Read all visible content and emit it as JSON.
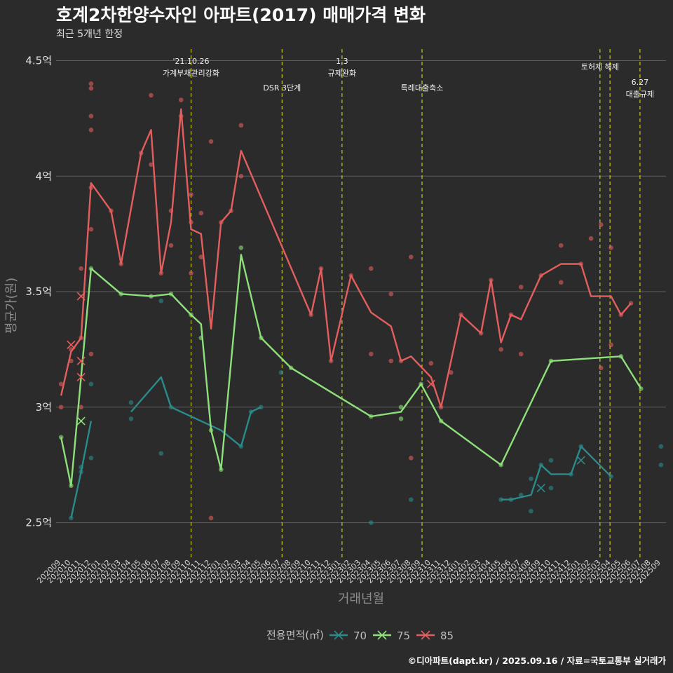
{
  "chart_data": {
    "type": "line",
    "title": "호계2차한양수자인 아파트(2017) 매매가격 변화",
    "subtitle": "최근 5개년 한정",
    "xlabel": "거래년월",
    "ylabel": "평균가(원)",
    "caption": "©디아파트(dapt.kr) / 2025.09.16 / 자료=국토교통부 실거래가",
    "legend_title": "전용면적(㎡)",
    "legend_position": "bottom",
    "grid": true,
    "y_unit": "억",
    "ylim": [
      2.35,
      4.55
    ],
    "y_ticks": [
      2.5,
      3,
      3.5,
      4,
      4.5
    ],
    "y_tick_labels": [
      "2.5억",
      "3억",
      "3.5억",
      "4억",
      "4.5억"
    ],
    "x_categories": [
      "202009",
      "202010",
      "202011",
      "202012",
      "202101",
      "202102",
      "202103",
      "202104",
      "202105",
      "202106",
      "202107",
      "202108",
      "202109",
      "202110",
      "202111",
      "202112",
      "202201",
      "202202",
      "202203",
      "202204",
      "202205",
      "202206",
      "202207",
      "202208",
      "202209",
      "202210",
      "202211",
      "202212",
      "202301",
      "202302",
      "202303",
      "202304",
      "202305",
      "202306",
      "202307",
      "202308",
      "202309",
      "202310",
      "202311",
      "202312",
      "202401",
      "202402",
      "202403",
      "202404",
      "202405",
      "202406",
      "202407",
      "202408",
      "202409",
      "202410",
      "202411",
      "202412",
      "202501",
      "202502",
      "202503",
      "202504",
      "202505",
      "202506",
      "202507",
      "202508",
      "202509"
    ],
    "events": [
      {
        "x": 13.0,
        "label": "'21.10.26\n가계부채관리강화",
        "row": 0
      },
      {
        "x": 22.1,
        "label": "DSR 3단계",
        "row": 2
      },
      {
        "x": 28.1,
        "label": "1.3\n규제완화",
        "row": 0
      },
      {
        "x": 36.1,
        "label": "특례대출축소",
        "row": 2
      },
      {
        "x": 53.9,
        "label": "토허제 해제",
        "row": 1
      },
      {
        "x": 54.9,
        "label": "",
        "row": 1
      },
      {
        "x": 57.9,
        "label": "6.27\n대출규제",
        "row": 3
      }
    ],
    "series": [
      {
        "name": "70",
        "color": "#2a8b8b",
        "line": [
          [
            [
              1,
              2.52
            ],
            [
              2,
              2.72
            ],
            [
              3,
              2.94
            ]
          ],
          [
            [
              7,
              2.98
            ],
            [
              10,
              3.13
            ],
            [
              11,
              3.0
            ],
            [
              16,
              2.9
            ],
            [
              18,
              2.83
            ],
            [
              19,
              2.98
            ],
            [
              20,
              3.0
            ]
          ],
          [
            [
              44,
              2.6
            ],
            [
              45,
              2.6
            ],
            [
              47,
              2.62
            ],
            [
              48,
              2.75
            ],
            [
              49,
              2.71
            ],
            [
              51,
              2.71
            ],
            [
              52,
              2.83
            ],
            [
              55,
              2.7
            ]
          ]
        ],
        "points": [
          [
            1,
            2.52
          ],
          [
            2,
            2.72
          ],
          [
            2,
            2.74
          ],
          [
            3,
            2.78
          ],
          [
            3,
            3.1
          ],
          [
            7,
            2.95
          ],
          [
            7,
            3.02
          ],
          [
            10,
            2.8
          ],
          [
            10,
            3.46
          ],
          [
            11,
            3.0
          ],
          [
            15,
            3.41
          ],
          [
            18,
            2.83
          ],
          [
            19,
            2.98
          ],
          [
            20,
            3.0
          ],
          [
            22,
            3.15
          ],
          [
            31,
            2.5
          ],
          [
            35,
            2.6
          ],
          [
            44,
            2.6
          ],
          [
            45,
            2.6
          ],
          [
            46,
            2.62
          ],
          [
            47,
            2.55
          ],
          [
            47,
            2.69
          ],
          [
            48,
            2.75
          ],
          [
            49,
            2.65
          ],
          [
            49,
            2.77
          ],
          [
            51,
            2.71
          ],
          [
            52,
            2.83
          ],
          [
            55,
            2.7
          ],
          [
            60,
            2.75
          ],
          [
            60,
            2.83
          ]
        ],
        "x_marks": [
          [
            48,
            2.65
          ],
          [
            52,
            2.77
          ]
        ]
      },
      {
        "name": "75",
        "color": "#8ee07a",
        "line": [
          [
            [
              0,
              2.87
            ],
            [
              1,
              2.66
            ],
            [
              3,
              3.6
            ],
            [
              6,
              3.49
            ],
            [
              9,
              3.48
            ],
            [
              11,
              3.49
            ],
            [
              13,
              3.4
            ],
            [
              14,
              3.36
            ],
            [
              15,
              2.9
            ],
            [
              16,
              2.73
            ],
            [
              18,
              3.66
            ],
            [
              20,
              3.3
            ],
            [
              23,
              3.17
            ],
            [
              31,
              2.96
            ],
            [
              34,
              2.98
            ],
            [
              36,
              3.1
            ],
            [
              38,
              2.94
            ],
            [
              44,
              2.75
            ],
            [
              49,
              3.2
            ],
            [
              56,
              3.22
            ],
            [
              58,
              3.08
            ]
          ]
        ],
        "points": [
          [
            0,
            2.87
          ],
          [
            1,
            2.66
          ],
          [
            3,
            3.6
          ],
          [
            6,
            3.49
          ],
          [
            9,
            3.48
          ],
          [
            11,
            3.49
          ],
          [
            13,
            3.4
          ],
          [
            14,
            3.3
          ],
          [
            15,
            2.9
          ],
          [
            16,
            2.73
          ],
          [
            18,
            3.69
          ],
          [
            20,
            3.3
          ],
          [
            23,
            3.17
          ],
          [
            31,
            2.96
          ],
          [
            34,
            3.0
          ],
          [
            34,
            2.95
          ],
          [
            36,
            3.1
          ],
          [
            38,
            2.94
          ],
          [
            44,
            2.75
          ],
          [
            49,
            3.2
          ],
          [
            56,
            3.22
          ],
          [
            58,
            3.08
          ]
        ],
        "x_marks": [
          [
            2,
            2.94
          ]
        ]
      },
      {
        "name": "85",
        "color": "#e45e5e",
        "line": [
          [
            [
              0,
              3.05
            ],
            [
              1,
              3.24
            ],
            [
              2,
              3.3
            ],
            [
              3,
              3.97
            ],
            [
              5,
              3.85
            ],
            [
              6,
              3.62
            ],
            [
              8,
              4.1
            ],
            [
              9,
              4.2
            ],
            [
              10,
              3.58
            ],
            [
              11,
              3.8
            ],
            [
              12,
              4.29
            ],
            [
              13,
              3.77
            ],
            [
              14,
              3.75
            ],
            [
              15,
              3.34
            ],
            [
              16,
              3.8
            ],
            [
              17,
              3.85
            ],
            [
              18,
              4.11
            ],
            [
              25,
              3.4
            ],
            [
              26,
              3.6
            ],
            [
              27,
              3.2
            ],
            [
              29,
              3.57
            ],
            [
              31,
              3.41
            ],
            [
              33,
              3.35
            ],
            [
              34,
              3.2
            ],
            [
              35,
              3.22
            ],
            [
              37,
              3.13
            ],
            [
              38,
              3.0
            ],
            [
              40,
              3.4
            ],
            [
              42,
              3.32
            ],
            [
              43,
              3.55
            ],
            [
              44,
              3.28
            ],
            [
              45,
              3.4
            ],
            [
              46,
              3.38
            ],
            [
              48,
              3.57
            ],
            [
              50,
              3.62
            ],
            [
              52,
              3.62
            ],
            [
              53,
              3.48
            ],
            [
              54,
              3.48
            ],
            [
              55,
              3.48
            ],
            [
              56,
              3.4
            ],
            [
              57,
              3.45
            ]
          ]
        ],
        "points": [
          [
            0,
            3.0
          ],
          [
            0,
            3.1
          ],
          [
            1,
            3.2
          ],
          [
            1,
            3.25
          ],
          [
            2,
            3.3
          ],
          [
            2,
            3.6
          ],
          [
            2,
            3.0
          ],
          [
            3,
            3.23
          ],
          [
            3,
            3.77
          ],
          [
            3,
            3.95
          ],
          [
            3,
            4.2
          ],
          [
            3,
            4.26
          ],
          [
            3,
            4.38
          ],
          [
            3,
            4.4
          ],
          [
            5,
            3.85
          ],
          [
            6,
            3.62
          ],
          [
            8,
            4.1
          ],
          [
            9,
            4.05
          ],
          [
            9,
            4.35
          ],
          [
            10,
            3.58
          ],
          [
            11,
            3.7
          ],
          [
            11,
            3.85
          ],
          [
            12,
            4.26
          ],
          [
            12,
            4.33
          ],
          [
            13,
            3.58
          ],
          [
            13,
            3.8
          ],
          [
            13,
            3.92
          ],
          [
            14,
            3.65
          ],
          [
            14,
            3.84
          ],
          [
            15,
            4.15
          ],
          [
            15,
            2.52
          ],
          [
            16,
            3.8
          ],
          [
            17,
            3.85
          ],
          [
            18,
            4.0
          ],
          [
            18,
            4.22
          ],
          [
            25,
            3.4
          ],
          [
            26,
            3.6
          ],
          [
            27,
            3.2
          ],
          [
            29,
            3.57
          ],
          [
            31,
            3.6
          ],
          [
            31,
            3.23
          ],
          [
            33,
            3.49
          ],
          [
            33,
            3.2
          ],
          [
            34,
            3.2
          ],
          [
            35,
            3.65
          ],
          [
            35,
            2.78
          ],
          [
            37,
            3.19
          ],
          [
            38,
            3.0
          ],
          [
            39,
            3.15
          ],
          [
            40,
            3.4
          ],
          [
            42,
            3.32
          ],
          [
            43,
            3.55
          ],
          [
            44,
            3.25
          ],
          [
            45,
            3.4
          ],
          [
            46,
            3.52
          ],
          [
            46,
            3.23
          ],
          [
            48,
            3.57
          ],
          [
            50,
            3.7
          ],
          [
            50,
            3.54
          ],
          [
            52,
            3.62
          ],
          [
            53,
            3.73
          ],
          [
            54,
            3.79
          ],
          [
            54,
            3.17
          ],
          [
            55,
            3.69
          ],
          [
            55,
            3.27
          ],
          [
            56,
            3.4
          ],
          [
            57,
            3.45
          ]
        ],
        "x_marks": [
          [
            1,
            3.27
          ],
          [
            2,
            3.48
          ],
          [
            2,
            3.2
          ],
          [
            2,
            3.13
          ],
          [
            37,
            3.1
          ]
        ]
      }
    ]
  }
}
